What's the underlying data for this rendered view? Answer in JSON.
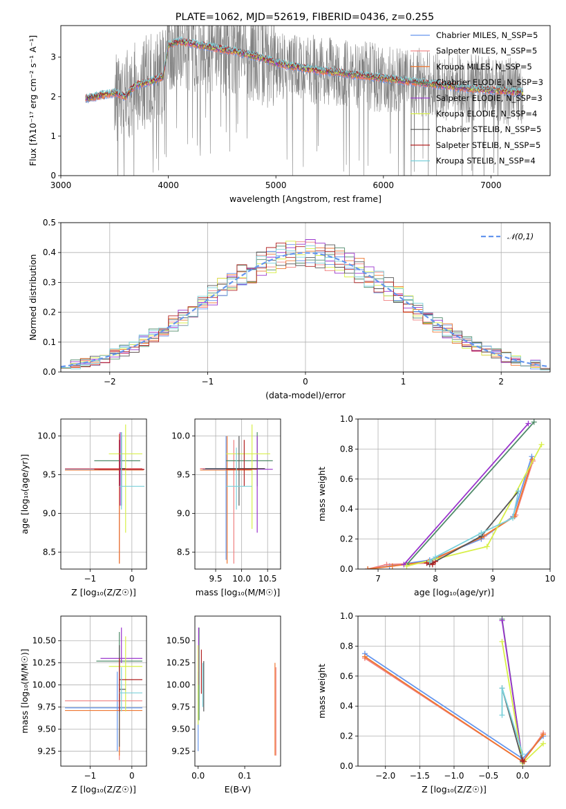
{
  "figure": {
    "title": "PLATE=1062, MJD=52619, FIBERID=0436, z=0.255"
  },
  "chart_data": [
    {
      "id": "spectrum",
      "type": "line",
      "xlabel": "wavelength [Angstrom, rest frame]",
      "ylabel": "Flux [fλ10⁻¹⁷ erg cm⁻² s⁻¹ A⁻¹]",
      "xlim": [
        3000,
        7550
      ],
      "ylim": [
        0,
        3.8
      ],
      "xticks": [
        3000,
        4000,
        5000,
        6000,
        7000
      ],
      "yticks": [
        0,
        1,
        2,
        3
      ],
      "grid": false,
      "legend_position": "upper right",
      "data_color": "#808080",
      "continuum_points": {
        "x": [
          3230,
          3500,
          3600,
          3700,
          3800,
          3950,
          4000,
          4100,
          4300,
          4500,
          4700,
          4850,
          5000,
          5300,
          5600,
          5900,
          6200,
          6500,
          6800,
          7100,
          7300
        ],
        "y": [
          1.95,
          2.1,
          2.0,
          2.3,
          2.35,
          2.5,
          3.3,
          3.4,
          3.3,
          3.2,
          3.1,
          3.0,
          2.85,
          2.7,
          2.6,
          2.5,
          2.4,
          2.3,
          2.2,
          2.15,
          2.1
        ]
      },
      "series": [
        {
          "name": "Chabrier MILES, N_SSP=5",
          "color": "#6495ed"
        },
        {
          "name": "Salpeter MILES, N_SSP=5",
          "color": "#f08080"
        },
        {
          "name": "Kroupa MILES, N_SSP=5",
          "color": "#ee7630"
        },
        {
          "name": "Chabrier ELODIE, N_SSP=3",
          "color": "#4f8a69"
        },
        {
          "name": "Salpeter ELODIE, N_SSP=3",
          "color": "#9932cc"
        },
        {
          "name": "Kroupa ELODIE, N_SSP=4",
          "color": "#d8ef48"
        },
        {
          "name": "Chabrier STELIB, N_SSP=5",
          "color": "#555555"
        },
        {
          "name": "Salpeter STELIB, N_SSP=5",
          "color": "#b22222"
        },
        {
          "name": "Kroupa STELIB, N_SSP=4",
          "color": "#7ad0da"
        }
      ]
    },
    {
      "id": "residuals",
      "type": "line",
      "xlabel": "(data-model)/error",
      "ylabel": "Normed distribution",
      "xlim": [
        -2.5,
        2.5
      ],
      "ylim": [
        0,
        0.5
      ],
      "xticks": [
        -2,
        -1,
        0,
        1,
        2
      ],
      "yticks": [
        0.0,
        0.1,
        0.2,
        0.3,
        0.4,
        0.5
      ],
      "grid": true,
      "legend_position": "upper right",
      "gaussian_label": "𝒩(0,1)",
      "gaussian_color": "#6495ed",
      "bin_width": 0.1,
      "histogram_seeds": [
        1,
        2,
        3,
        4,
        5,
        6,
        7,
        8,
        9
      ]
    },
    {
      "id": "age-vs-Z",
      "type": "scatter",
      "xlabel": "Z [log₁₀(Z/Z☉)]",
      "ylabel": "age  [log₁₀(age/yr)]",
      "xlim": [
        -1.7,
        0.35
      ],
      "ylim": [
        8.28,
        10.22
      ],
      "xticks": [
        -1,
        0
      ],
      "yticks": [
        8.5,
        9.0,
        9.5,
        10.0
      ],
      "grid": true,
      "crosses": [
        {
          "x": -0.3,
          "y": 9.57,
          "xl": -1.6,
          "xr": 0.3,
          "yl": 8.4,
          "yr": 10.0,
          "color": "#6495ed"
        },
        {
          "x": -0.3,
          "y": 9.58,
          "xl": -1.6,
          "xr": 0.25,
          "yl": 8.35,
          "yr": 10.02,
          "color": "#f08080"
        },
        {
          "x": -0.3,
          "y": 9.56,
          "xl": -1.6,
          "xr": 0.28,
          "yl": 8.35,
          "yr": 10.03,
          "color": "#ee7630"
        },
        {
          "x": -0.25,
          "y": 9.68,
          "xl": -0.9,
          "xr": 0.2,
          "yl": 9.35,
          "yr": 10.0,
          "color": "#4f8a69"
        },
        {
          "x": -0.28,
          "y": 9.57,
          "xl": -0.8,
          "xr": 0.3,
          "yl": 9.1,
          "yr": 10.05,
          "color": "#9932cc"
        },
        {
          "x": -0.15,
          "y": 9.77,
          "xl": -0.55,
          "xr": 0.25,
          "yl": 8.75,
          "yr": 10.15,
          "color": "#d8ef48"
        },
        {
          "x": -0.25,
          "y": 9.58,
          "xl": -0.3,
          "xr": -0.15,
          "yl": 9.1,
          "yr": 10.05,
          "color": "#555555"
        },
        {
          "x": -0.3,
          "y": 9.57,
          "xl": -0.9,
          "xr": 0.3,
          "yl": 9.35,
          "yr": 9.95,
          "color": "#b22222"
        },
        {
          "x": -0.25,
          "y": 9.35,
          "xl": -0.3,
          "xr": 0.3,
          "yl": 9.05,
          "yr": 10.05,
          "color": "#7ad0da"
        }
      ]
    },
    {
      "id": "age-vs-mass",
      "type": "scatter",
      "xlabel": "mass [log₁₀(M/M☉)]",
      "ylabel": "",
      "xlim": [
        9.1,
        10.75
      ],
      "ylim": [
        8.28,
        10.22
      ],
      "xticks": [
        9.5,
        10.0,
        10.5
      ],
      "yticks": [
        8.5,
        9.0,
        9.5,
        10.0
      ],
      "grid": true,
      "crosses": [
        {
          "x": 9.7,
          "y": 9.57,
          "xl": 9.25,
          "xr": 10.15,
          "yl": 8.4,
          "yr": 10.0,
          "color": "#6495ed"
        },
        {
          "x": 9.85,
          "y": 9.58,
          "xl": 9.2,
          "xr": 10.3,
          "yl": 8.35,
          "yr": 9.95,
          "color": "#f08080"
        },
        {
          "x": 9.72,
          "y": 9.56,
          "xl": 9.2,
          "xr": 10.2,
          "yl": 8.35,
          "yr": 10.0,
          "color": "#ee7630"
        },
        {
          "x": 10.3,
          "y": 9.68,
          "xl": 9.7,
          "xr": 10.6,
          "yl": 9.35,
          "yr": 10.05,
          "color": "#4f8a69"
        },
        {
          "x": 10.3,
          "y": 9.57,
          "xl": 10.25,
          "xr": 10.6,
          "yl": 8.75,
          "yr": 10.0,
          "color": "#9932cc"
        },
        {
          "x": 10.2,
          "y": 9.77,
          "xl": 9.7,
          "xr": 10.55,
          "yl": 8.8,
          "yr": 10.15,
          "color": "#d8ef48"
        },
        {
          "x": 9.95,
          "y": 9.58,
          "xl": 9.3,
          "xr": 10.45,
          "yl": 9.1,
          "yr": 10.0,
          "color": "#555555"
        },
        {
          "x": 10.05,
          "y": 9.57,
          "xl": 9.7,
          "xr": 10.3,
          "yl": 9.35,
          "yr": 9.95,
          "color": "#b22222"
        },
        {
          "x": 9.9,
          "y": 9.35,
          "xl": 9.7,
          "xr": 10.2,
          "yl": 9.05,
          "yr": 9.85,
          "color": "#7ad0da"
        }
      ]
    },
    {
      "id": "mass-weight-vs-age",
      "type": "line",
      "xlabel": "age  [log₁₀(age/yr)]",
      "ylabel": "mass weight",
      "xlim": [
        6.65,
        10.0
      ],
      "ylim": [
        0,
        1
      ],
      "xticks": [
        7,
        8,
        9,
        10
      ],
      "yticks": [
        0.0,
        0.2,
        0.4,
        0.6,
        0.8,
        1.0
      ],
      "grid": true,
      "series": [
        {
          "name": "Chabrier MILES",
          "color": "#6495ed",
          "x": [
            6.82,
            7.2,
            7.9,
            8.8,
            9.35,
            9.68
          ],
          "y": [
            0.0,
            0.02,
            0.06,
            0.2,
            0.35,
            0.75
          ]
        },
        {
          "name": "Salpeter MILES",
          "color": "#f08080",
          "x": [
            6.82,
            7.15,
            7.85,
            8.85,
            9.4,
            9.7
          ],
          "y": [
            0.0,
            0.03,
            0.04,
            0.22,
            0.36,
            0.72
          ]
        },
        {
          "name": "Kroupa MILES",
          "color": "#ee7630",
          "x": [
            6.82,
            7.25,
            7.88,
            8.8,
            9.38,
            9.69
          ],
          "y": [
            0.0,
            0.02,
            0.05,
            0.21,
            0.35,
            0.73
          ]
        },
        {
          "name": "Chabrier ELODIE",
          "color": "#4f8a69",
          "x": [
            7.5,
            9.72
          ],
          "y": [
            0.03,
            0.98
          ]
        },
        {
          "name": "Salpeter ELODIE",
          "color": "#9932cc",
          "x": [
            7.45,
            9.62
          ],
          "y": [
            0.03,
            0.97
          ]
        },
        {
          "name": "Kroupa ELODIE",
          "color": "#d8ef48",
          "x": [
            7.5,
            8.9,
            9.85
          ],
          "y": [
            0.02,
            0.15,
            0.83
          ]
        },
        {
          "name": "Chabrier STELIB",
          "color": "#555555",
          "x": [
            7.9,
            7.95,
            8.8,
            9.45
          ],
          "y": [
            0.03,
            0.04,
            0.22,
            0.52
          ]
        },
        {
          "name": "Salpeter STELIB",
          "color": "#b22222",
          "x": [
            7.85,
            7.95,
            8.0
          ],
          "y": [
            0.04,
            0.03,
            0.05
          ]
        },
        {
          "name": "Kroupa STELIB",
          "color": "#7ad0da",
          "x": [
            7.9,
            8.0,
            8.8,
            9.35,
            9.45
          ],
          "y": [
            0.05,
            0.08,
            0.24,
            0.34,
            0.52
          ]
        }
      ]
    },
    {
      "id": "mass-vs-Z",
      "type": "scatter",
      "xlabel": "Z [log₁₀(Z/Z☉)]",
      "ylabel": "mass [log₁₀(M/M☉)]",
      "xlim": [
        -1.7,
        0.35
      ],
      "ylim": [
        9.08,
        10.78
      ],
      "xticks": [
        -1,
        0
      ],
      "yticks": [
        9.25,
        9.5,
        9.75,
        10.0,
        10.25,
        10.5
      ],
      "grid": true,
      "crosses": [
        {
          "x": -0.35,
          "y": 9.74,
          "xl": -1.6,
          "xr": 0.25,
          "yl": 9.25,
          "yr": 10.15,
          "color": "#6495ed"
        },
        {
          "x": -0.3,
          "y": 9.82,
          "xl": -1.6,
          "xr": 0.25,
          "yl": 9.15,
          "yr": 10.3,
          "color": "#f08080"
        },
        {
          "x": -0.3,
          "y": 9.71,
          "xl": -1.6,
          "xr": 0.25,
          "yl": 9.2,
          "yr": 10.2,
          "color": "#ee7630"
        },
        {
          "x": -0.3,
          "y": 10.27,
          "xl": -0.85,
          "xr": 0.25,
          "yl": 9.7,
          "yr": 10.6,
          "color": "#4f8a69"
        },
        {
          "x": -0.25,
          "y": 10.3,
          "xl": -0.75,
          "xr": 0.25,
          "yl": 10.25,
          "yr": 10.65,
          "color": "#9932cc"
        },
        {
          "x": -0.15,
          "y": 10.21,
          "xl": -0.55,
          "xr": 0.25,
          "yl": 9.7,
          "yr": 10.55,
          "color": "#d8ef48"
        },
        {
          "x": -0.3,
          "y": 9.95,
          "xl": -0.3,
          "xr": -0.15,
          "yl": 9.3,
          "yr": 10.45,
          "color": "#555555"
        },
        {
          "x": -0.3,
          "y": 10.06,
          "xl": -0.3,
          "xr": 0.25,
          "yl": 9.7,
          "yr": 10.3,
          "color": "#b22222"
        },
        {
          "x": -0.25,
          "y": 9.91,
          "xl": -0.3,
          "xr": 0.25,
          "yl": 9.7,
          "yr": 10.2,
          "color": "#7ad0da"
        }
      ]
    },
    {
      "id": "mass-vs-ebv",
      "type": "scatter",
      "xlabel": "E(B-V)",
      "ylabel": "",
      "xlim": [
        -0.007,
        0.177
      ],
      "ylim": [
        9.08,
        10.78
      ],
      "xticks": [
        0.0,
        0.1
      ],
      "yticks": [
        9.25,
        9.5,
        9.75,
        10.0,
        10.25,
        10.5
      ],
      "grid": false,
      "crosses": [
        {
          "x": 0.0,
          "y": 9.74,
          "xl": 0.0,
          "xr": 0.0,
          "yl": 9.25,
          "yr": 10.15,
          "color": "#6495ed"
        },
        {
          "x": 0.167,
          "y": 9.82,
          "xl": 0.167,
          "xr": 0.167,
          "yl": 9.2,
          "yr": 10.2,
          "color": "#f08080"
        },
        {
          "x": 0.165,
          "y": 9.71,
          "xl": 0.165,
          "xr": 0.165,
          "yl": 9.2,
          "yr": 10.25,
          "color": "#ee7630"
        },
        {
          "x": 0.002,
          "y": 10.27,
          "xl": 0.002,
          "xr": 0.002,
          "yl": 9.6,
          "yr": 10.65,
          "color": "#4f8a69"
        },
        {
          "x": 0.001,
          "y": 10.3,
          "xl": 0.001,
          "xr": 0.001,
          "yl": 10.0,
          "yr": 10.65,
          "color": "#9932cc"
        },
        {
          "x": 0.0,
          "y": 10.21,
          "xl": 0.0,
          "xr": 0.0,
          "yl": 9.55,
          "yr": 10.45,
          "color": "#d8ef48"
        },
        {
          "x": 0.012,
          "y": 9.95,
          "xl": 0.012,
          "xr": 0.012,
          "yl": 9.7,
          "yr": 10.27,
          "color": "#555555"
        },
        {
          "x": 0.007,
          "y": 10.06,
          "xl": 0.007,
          "xr": 0.007,
          "yl": 9.9,
          "yr": 10.4,
          "color": "#b22222"
        },
        {
          "x": 0.01,
          "y": 9.91,
          "xl": 0.01,
          "xr": 0.01,
          "yl": 9.75,
          "yr": 10.25,
          "color": "#7ad0da"
        }
      ]
    },
    {
      "id": "mass-weight-vs-Z",
      "type": "line",
      "xlabel": "Z [log₁₀(Z/Z☉)]",
      "ylabel": "mass weight",
      "xlim": [
        -2.4,
        0.4
      ],
      "ylim": [
        0,
        1
      ],
      "xticks": [
        -2.0,
        -1.5,
        -1.0,
        -0.5,
        0.0
      ],
      "yticks": [
        0.0,
        0.2,
        0.4,
        0.6,
        0.8,
        1.0
      ],
      "grid": true,
      "series": [
        {
          "name": "Chabrier MILES",
          "color": "#6495ed",
          "x": [
            -2.3,
            0.0,
            0.3
          ],
          "y": [
            0.75,
            0.05,
            0.2
          ]
        },
        {
          "name": "Salpeter MILES",
          "color": "#f08080",
          "x": [
            -2.3,
            0.0,
            0.3
          ],
          "y": [
            0.72,
            0.03,
            0.22
          ]
        },
        {
          "name": "Kroupa MILES",
          "color": "#ee7630",
          "x": [
            -2.3,
            0.0,
            0.3
          ],
          "y": [
            0.73,
            0.03,
            0.21
          ]
        },
        {
          "name": "Chabrier ELODIE",
          "color": "#4f8a69",
          "x": [
            -0.3,
            0.0
          ],
          "y": [
            0.98,
            0.03
          ]
        },
        {
          "name": "Salpeter ELODIE",
          "color": "#9932cc",
          "x": [
            -0.3,
            0.0
          ],
          "y": [
            0.97,
            0.03
          ]
        },
        {
          "name": "Kroupa ELODIE",
          "color": "#d8ef48",
          "x": [
            -0.3,
            0.0,
            0.3
          ],
          "y": [
            0.83,
            0.02,
            0.15
          ]
        },
        {
          "name": "Chabrier STELIB",
          "color": "#555555",
          "x": [
            -0.3,
            0.0
          ],
          "y": [
            0.52,
            0.03
          ]
        },
        {
          "name": "Salpeter STELIB",
          "color": "#b22222",
          "x": [
            0.0,
            0.02
          ],
          "y": [
            0.04,
            0.03
          ]
        },
        {
          "name": "Kroupa STELIB",
          "color": "#7ad0da",
          "x": [
            -0.3,
            -0.3,
            0.0
          ],
          "y": [
            0.34,
            0.52,
            0.08
          ]
        }
      ]
    }
  ]
}
